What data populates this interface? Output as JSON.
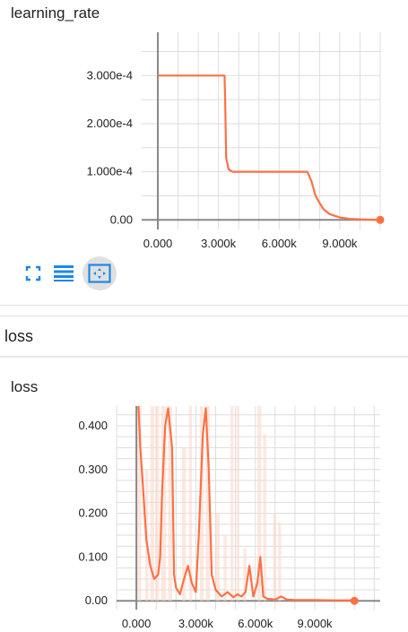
{
  "charts": [
    {
      "title": "learning_rate",
      "chart_data": {
        "type": "line",
        "title": "learning_rate",
        "xlabel": "",
        "ylabel": "",
        "xlim": [
          -800,
          11000
        ],
        "ylim": [
          -2e-05,
          0.00039
        ],
        "y_ticks": [
          0,
          0.0001,
          0.0002,
          0.0003
        ],
        "y_tick_labels": [
          "0.00",
          "1.000e-4",
          "2.000e-4",
          "3.000e-4"
        ],
        "x_ticks": [
          0,
          3000,
          6000,
          9000
        ],
        "x_tick_labels": [
          "0.000",
          "3.000k",
          "6.000k",
          "9.000k"
        ],
        "grid": true,
        "series": [
          {
            "color": "#ff7043",
            "x": [
              0,
              3300,
              3330,
              3380,
              3500,
              3700,
              4000,
              5000,
              6000,
              7000,
              7400,
              7600,
              7800,
              8000,
              8200,
              8500,
              9000,
              9500,
              10000,
              10500,
              11000
            ],
            "y": [
              0.0003,
              0.0003,
              0.00025,
              0.00013,
              0.000105,
              0.0001,
              0.0001,
              0.0001,
              0.0001,
              0.0001,
              0.0001,
              8e-05,
              5e-05,
              3.5e-05,
              2.2e-05,
              1.2e-05,
              5e-06,
              2e-06,
              1e-06,
              5e-07,
              0
            ]
          }
        ],
        "end_marker": {
          "x": 11000,
          "y": 0
        }
      }
    },
    {
      "title": "loss",
      "chart_data": {
        "type": "line",
        "title": "loss",
        "xlabel": "",
        "ylabel": "",
        "xlim": [
          -1000,
          12300
        ],
        "ylim": [
          -0.02,
          0.445
        ],
        "y_ticks": [
          0,
          0.1,
          0.2,
          0.3,
          0.4
        ],
        "y_tick_labels": [
          "0.00",
          "0.100",
          "0.200",
          "0.300",
          "0.400"
        ],
        "x_ticks": [
          0,
          3000,
          6000,
          9000
        ],
        "x_tick_labels": [
          "0.000",
          "3.000k",
          "6.000k",
          "9.000k"
        ],
        "grid": true,
        "series": [
          {
            "color": "#ff7043",
            "smoothed": true,
            "x": [
              100,
              200,
              350,
              500,
              700,
              900,
              1100,
              1200,
              1300,
              1450,
              1600,
              1800,
              1900,
              2000,
              2200,
              2400,
              2600,
              2800,
              3000,
              3150,
              3350,
              3500,
              3650,
              3800,
              4000,
              4300,
              4600,
              4900,
              5100,
              5300,
              5500,
              5700,
              5900,
              6100,
              6250,
              6400,
              6600,
              7000,
              7300,
              7600,
              8000,
              9000,
              10000,
              11000
            ],
            "y": [
              0.45,
              0.35,
              0.25,
              0.14,
              0.08,
              0.05,
              0.06,
              0.1,
              0.25,
              0.4,
              0.44,
              0.35,
              0.06,
              0.03,
              0.015,
              0.05,
              0.08,
              0.04,
              0.02,
              0.15,
              0.38,
              0.44,
              0.3,
              0.06,
              0.025,
              0.01,
              0.02,
              0.008,
              0.015,
              0.01,
              0.02,
              0.08,
              0.01,
              0.04,
              0.1,
              0.01,
              0.005,
              0.003,
              0.01,
              0.003,
              0.002,
              0.002,
              0.001,
              0.001
            ]
          }
        ],
        "end_marker": {
          "x": 11000,
          "y": 0
        }
      }
    }
  ],
  "section_header": "loss",
  "toolbar": {
    "buttons": [
      {
        "icon": "fullscreen-icon"
      },
      {
        "icon": "list-icon"
      },
      {
        "icon": "fit-domain-icon",
        "active": true
      }
    ]
  },
  "colors": {
    "line": "#ff7043",
    "raw": "#fbd8cd",
    "icon": "#1e88e5"
  }
}
